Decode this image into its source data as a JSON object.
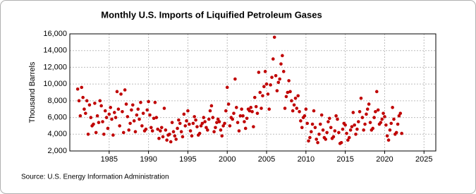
{
  "chart_data": {
    "type": "scatter",
    "title": "Monthly U.S. Imports of Liquified Petroleum Gases",
    "y_label": "Thousand Barrels",
    "source": "Source: U.S. Energy Information Administration",
    "color": "#c00000",
    "grid": true,
    "xlim": [
      1980,
      2026.5
    ],
    "xticks": [
      1985,
      1990,
      1995,
      2000,
      2005,
      2010,
      2015,
      2020,
      2025
    ],
    "ylim": [
      2000,
      16000
    ],
    "yticks": [
      {
        "value": 2000,
        "label": "2,000"
      },
      {
        "value": 4000,
        "label": "4,000"
      },
      {
        "value": 6000,
        "label": "6,000"
      },
      {
        "value": 8000,
        "label": "8,000"
      },
      {
        "value": 10000,
        "label": "10,000"
      },
      {
        "value": 12000,
        "label": "12,000"
      },
      {
        "value": 14000,
        "label": "14,000"
      },
      {
        "value": 16000,
        "label": "16,000"
      }
    ],
    "x": [
      1981,
      1981.17,
      1981.33,
      1981.5,
      1981.67,
      1981.83,
      1982,
      1982.17,
      1982.33,
      1982.5,
      1982.67,
      1982.83,
      1983,
      1983.17,
      1983.33,
      1983.5,
      1983.67,
      1983.83,
      1984,
      1984.17,
      1984.33,
      1984.5,
      1984.67,
      1984.83,
      1985,
      1985.17,
      1985.33,
      1985.5,
      1985.67,
      1985.83,
      1986,
      1986.17,
      1986.33,
      1986.5,
      1986.67,
      1986.83,
      1987,
      1987.17,
      1987.33,
      1987.5,
      1987.67,
      1987.83,
      1988,
      1988.17,
      1988.33,
      1988.5,
      1988.67,
      1988.83,
      1989,
      1989.17,
      1989.33,
      1989.5,
      1989.67,
      1989.83,
      1990,
      1990.17,
      1990.33,
      1990.5,
      1990.67,
      1990.83,
      1991,
      1991.17,
      1991.33,
      1991.5,
      1991.67,
      1991.83,
      1992,
      1992.17,
      1992.33,
      1992.5,
      1992.67,
      1992.83,
      1993,
      1993.17,
      1993.33,
      1993.5,
      1993.67,
      1993.83,
      1994,
      1994.17,
      1994.33,
      1994.5,
      1994.67,
      1994.83,
      1995,
      1995.17,
      1995.33,
      1995.5,
      1995.67,
      1995.83,
      1996,
      1996.17,
      1996.33,
      1996.5,
      1996.67,
      1996.83,
      1997,
      1997.17,
      1997.33,
      1997.5,
      1997.67,
      1997.83,
      1998,
      1998.17,
      1998.33,
      1998.5,
      1998.67,
      1998.83,
      1999,
      1999.17,
      1999.33,
      1999.5,
      1999.67,
      1999.83,
      2000,
      2000.17,
      2000.33,
      2000.5,
      2000.67,
      2000.83,
      2001,
      2001.17,
      2001.33,
      2001.5,
      2001.67,
      2001.83,
      2002,
      2002.17,
      2002.33,
      2002.5,
      2002.67,
      2002.83,
      2003,
      2003.17,
      2003.33,
      2003.5,
      2003.67,
      2003.83,
      2004,
      2004.17,
      2004.33,
      2004.5,
      2004.67,
      2004.83,
      2005,
      2005.17,
      2005.33,
      2005.5,
      2005.67,
      2005.83,
      2006,
      2006.17,
      2006.33,
      2006.5,
      2006.67,
      2006.83,
      2007,
      2007.17,
      2007.33,
      2007.5,
      2007.67,
      2007.83,
      2008,
      2008.17,
      2008.33,
      2008.5,
      2008.67,
      2008.83,
      2009,
      2009.17,
      2009.33,
      2009.5,
      2009.67,
      2009.83,
      2010,
      2010.17,
      2010.33,
      2010.5,
      2010.67,
      2010.83,
      2011,
      2011.17,
      2011.33,
      2011.5,
      2011.67,
      2011.83,
      2012,
      2012.17,
      2012.33,
      2012.5,
      2012.67,
      2012.83,
      2013,
      2013.17,
      2013.33,
      2013.5,
      2013.67,
      2013.83,
      2014,
      2014.17,
      2014.33,
      2014.5,
      2014.67,
      2014.83,
      2015,
      2015.17,
      2015.33,
      2015.5,
      2015.67,
      2015.83,
      2016,
      2016.17,
      2016.33,
      2016.5,
      2016.67,
      2016.83,
      2017,
      2017.17,
      2017.33,
      2017.5,
      2017.67,
      2017.83,
      2018,
      2018.17,
      2018.33,
      2018.5,
      2018.67,
      2018.83,
      2019,
      2019.17,
      2019.33,
      2019.5,
      2019.67,
      2019.83,
      2020,
      2020.17,
      2020.33,
      2020.5,
      2020.67,
      2020.83,
      2021,
      2021.17,
      2021.33,
      2021.5,
      2021.67,
      2021.83,
      2022,
      2022.17
    ],
    "values": [
      9400,
      8000,
      6200,
      9600,
      8400,
      7000,
      6500,
      8000,
      4000,
      7500,
      6000,
      5000,
      5200,
      7700,
      4200,
      6200,
      5400,
      8000,
      7400,
      5500,
      4000,
      6800,
      6000,
      4700,
      6400,
      7200,
      5800,
      3900,
      6600,
      6000,
      9100,
      7000,
      5000,
      8800,
      6700,
      4200,
      9300,
      7600,
      6100,
      4500,
      5300,
      6900,
      7500,
      5600,
      4300,
      6300,
      7000,
      5800,
      7800,
      5000,
      6500,
      4400,
      4600,
      6900,
      7900,
      6300,
      4800,
      4400,
      5900,
      7800,
      6000,
      4600,
      3500,
      4400,
      4800,
      3700,
      7100,
      4500,
      3300,
      3900,
      4000,
      3100,
      5400,
      4300,
      3800,
      3400,
      4700,
      5700,
      5300,
      4300,
      3700,
      6400,
      5000,
      5600,
      6800,
      5200,
      4400,
      3800,
      5300,
      6100,
      5700,
      4900,
      3900,
      4100,
      5000,
      5300,
      6000,
      5500,
      4800,
      4500,
      5800,
      6800,
      7400,
      6000,
      4300,
      4800,
      5400,
      5800,
      5500,
      4500,
      3800,
      5000,
      5300,
      6800,
      9600,
      7600,
      5000,
      6000,
      5800,
      6500,
      10600,
      7200,
      5400,
      4400,
      6200,
      7000,
      6200,
      5500,
      4700,
      5900,
      7000,
      6800,
      7200,
      6700,
      4900,
      8400,
      7300,
      6500,
      11400,
      9000,
      7100,
      8600,
      9700,
      11500,
      10000,
      8800,
      7000,
      9900,
      10800,
      13000,
      15600,
      11000,
      9200,
      10200,
      10600,
      12400,
      13400,
      11500,
      7100,
      8500,
      9000,
      10400,
      9100,
      8000,
      6800,
      7500,
      8300,
      7100,
      8600,
      6700,
      5600,
      4800,
      6000,
      6200,
      7000,
      5300,
      3200,
      3600,
      4300,
      5200,
      6800,
      4800,
      3400,
      3000,
      4000,
      5200,
      6300,
      4500,
      3600,
      3400,
      4200,
      5500,
      5900,
      4800,
      3500,
      3700,
      4400,
      6200,
      5800,
      4200,
      2900,
      3000,
      4600,
      5300,
      5100,
      4100,
      3300,
      3600,
      4500,
      4900,
      6600,
      5100,
      4000,
      4600,
      5500,
      6700,
      8300,
      6000,
      4500,
      5200,
      6400,
      7000,
      7600,
      5400,
      4500,
      4700,
      6000,
      6700,
      9100,
      6900,
      5200,
      5400,
      5800,
      6500,
      6100,
      5100,
      3800,
      3300,
      4500,
      5300,
      7200,
      5800,
      4000,
      4200,
      5200,
      6200,
      6500,
      4100
    ]
  }
}
